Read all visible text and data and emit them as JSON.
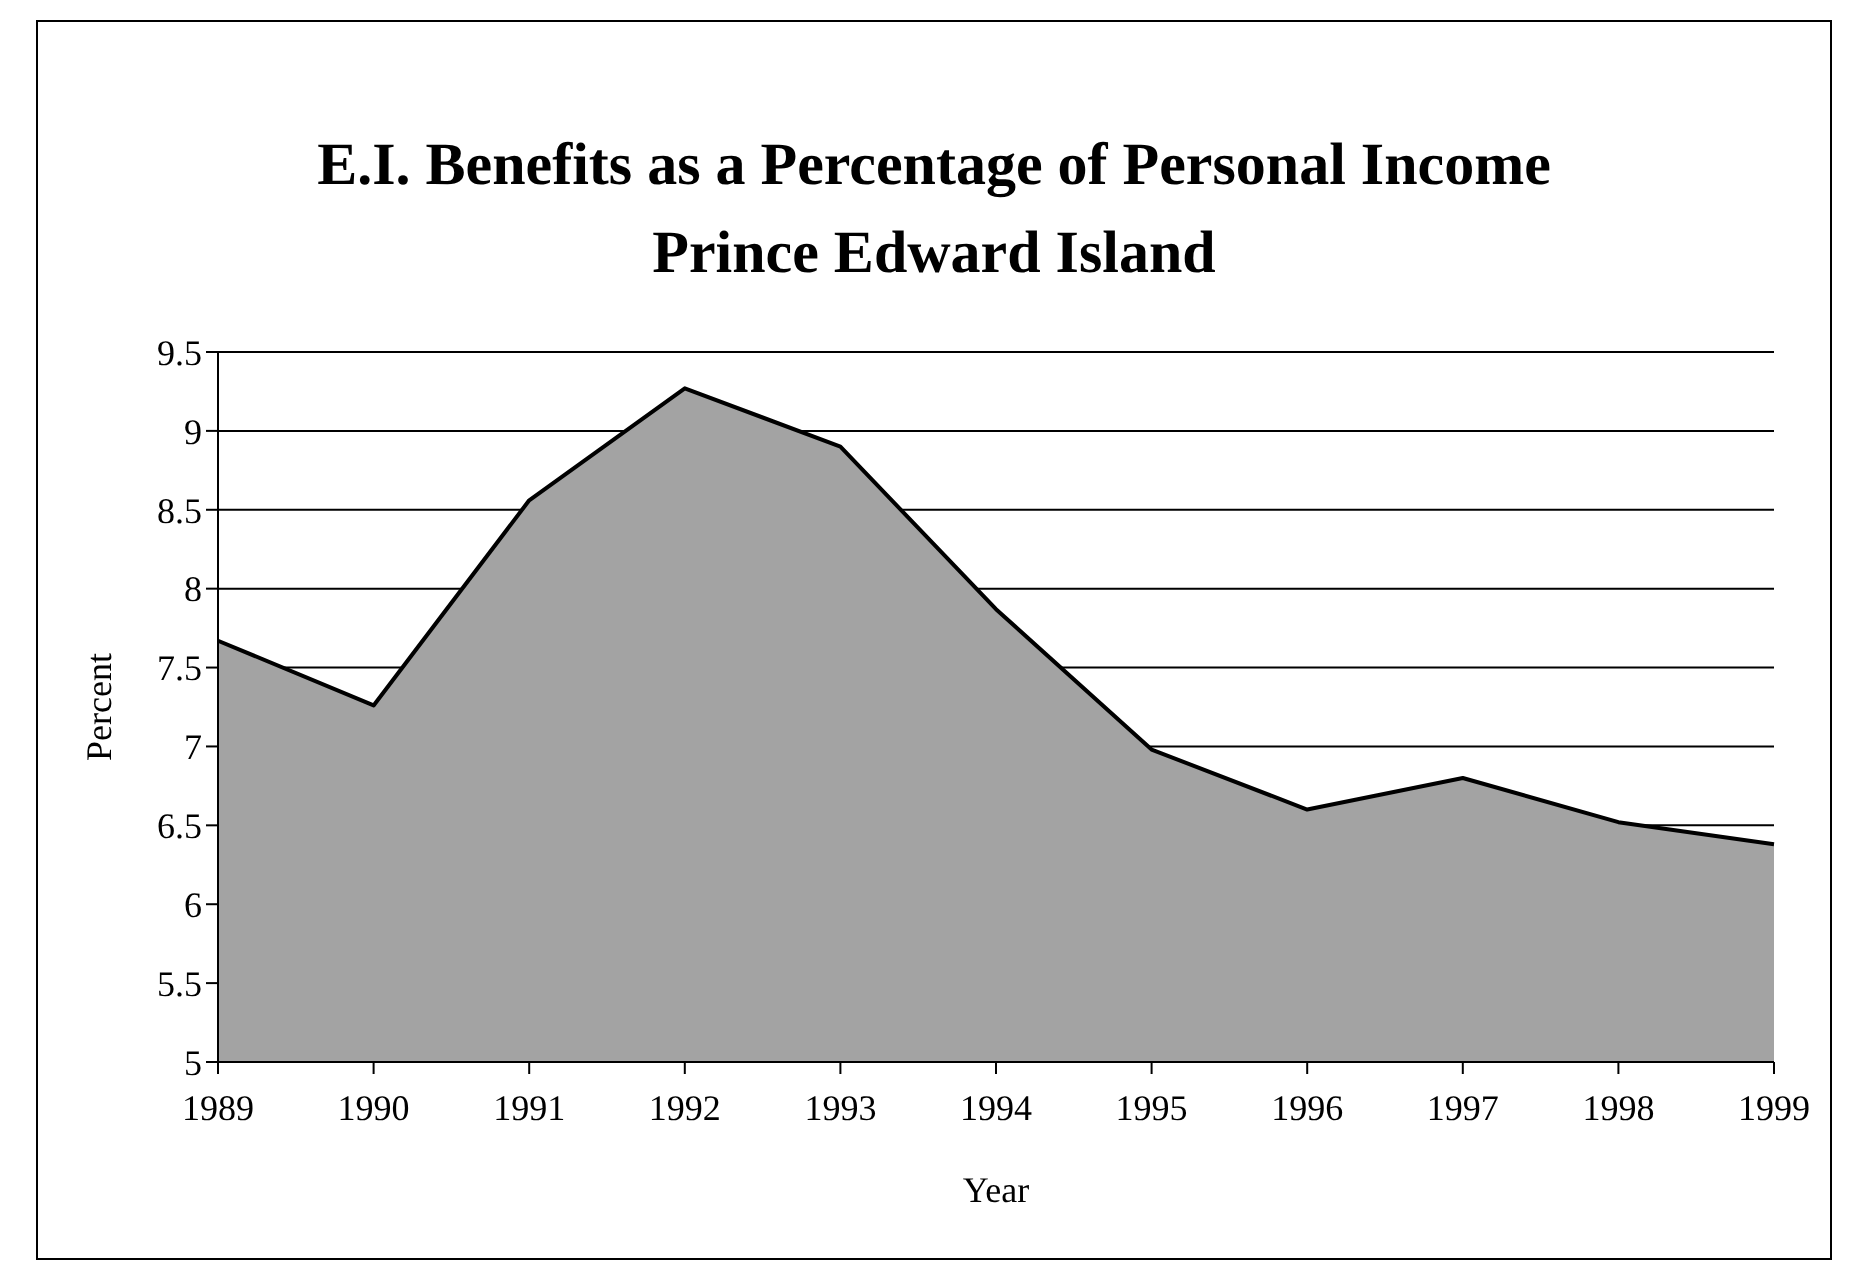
{
  "chart_data": {
    "type": "area",
    "title": "E.I. Benefits as a Percentage of Personal Income\nPrince Edward Island",
    "xlabel": "Year",
    "ylabel": "Percent",
    "categories": [
      "1989",
      "1990",
      "1991",
      "1992",
      "1993",
      "1994",
      "1995",
      "1996",
      "1997",
      "1998",
      "1999"
    ],
    "series": [
      {
        "color": "#a3a3a3",
        "values": [
          7.67,
          7.26,
          8.56,
          9.27,
          8.9,
          7.87,
          6.98,
          6.6,
          6.8,
          6.52,
          6.38
        ]
      }
    ],
    "ylim": [
      5,
      9.5
    ],
    "yticks": [
      5,
      5.5,
      6,
      6.5,
      7,
      7.5,
      8,
      8.5,
      9,
      9.5
    ],
    "grid": "y",
    "legend": false
  }
}
